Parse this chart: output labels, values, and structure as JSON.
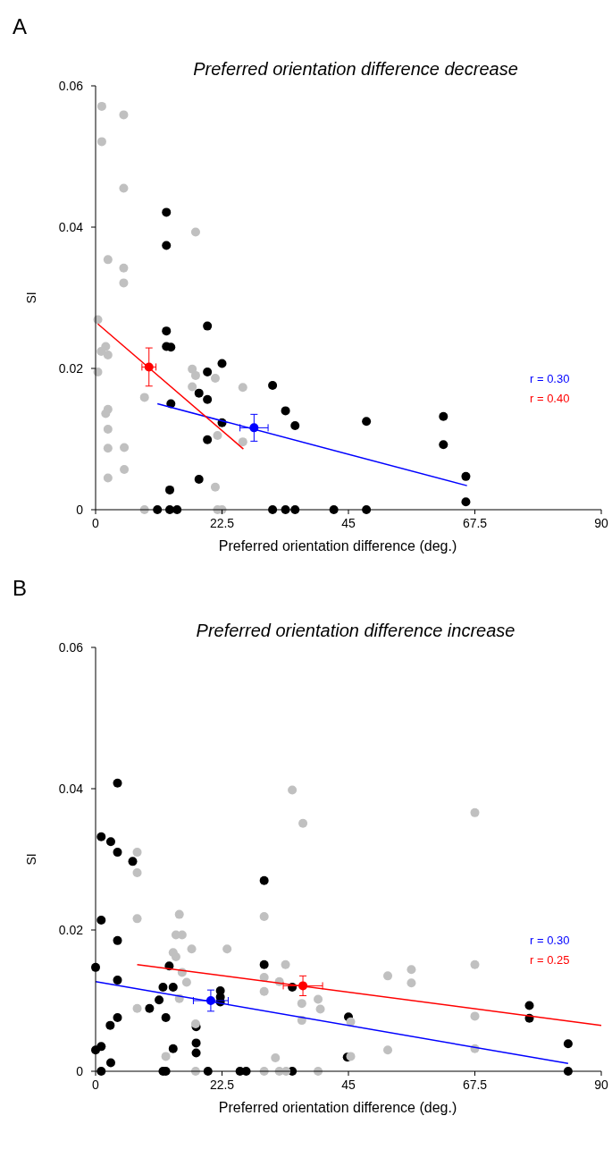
{
  "chart_data": [
    {
      "type": "scatter",
      "title": "Preferred orientation difference decrease",
      "xlabel": "Preferred orientation difference  (deg.)",
      "ylabel": "SI",
      "annotations": [
        "A"
      ],
      "xlim": [
        0,
        90
      ],
      "ylim": [
        0,
        0.06
      ],
      "xticks": [
        0,
        22.5,
        45,
        67.5,
        90
      ],
      "yticks": [
        0,
        0.02,
        0.04,
        0.06
      ],
      "marker": "circle",
      "series": [
        {
          "color": "#c0c0c0",
          "x": [
            1.1,
            5.0,
            1.1,
            5.0,
            2.2,
            5.0,
            5.0,
            17.8,
            0.4,
            1.8,
            1.0,
            2.2,
            0.4,
            17.2,
            17.8,
            21.3,
            17.2,
            26.2,
            8.7,
            2.2,
            1.8,
            2.2,
            2.2,
            5.1,
            21.7,
            26.2,
            5.1,
            2.2,
            21.3,
            8.7,
            21.7,
            22.5
          ],
          "values": [
            0.0571,
            0.0559,
            0.0521,
            0.0455,
            0.0354,
            0.0342,
            0.0321,
            0.0393,
            0.0269,
            0.0231,
            0.0224,
            0.0219,
            0.0195,
            0.0199,
            0.019,
            0.0186,
            0.0174,
            0.0173,
            0.0159,
            0.0142,
            0.0136,
            0.0114,
            0.0087,
            0.0088,
            0.0105,
            0.0096,
            0.0057,
            0.0045,
            0.0032,
            0,
            0,
            0
          ]
        },
        {
          "color": "#000000",
          "x": [
            12.6,
            12.6,
            12.6,
            12.6,
            13.4,
            19.9,
            22.5,
            19.9,
            18.4,
            19.9,
            13.4,
            22.5,
            19.9,
            18.4,
            13.2,
            11.0,
            13.2,
            14.5,
            31.5,
            33.8,
            35.5,
            48.2,
            61.9,
            61.9,
            65.9,
            65.9,
            31.5,
            33.8,
            35.5,
            42.4,
            48.2
          ],
          "values": [
            0.0421,
            0.0374,
            0.0253,
            0.0231,
            0.023,
            0.026,
            0.0207,
            0.0195,
            0.0165,
            0.0156,
            0.015,
            0.0123,
            0.0099,
            0.0043,
            0.0028,
            0,
            0,
            0,
            0.0176,
            0.014,
            0.0119,
            0.0125,
            0.0132,
            0.0092,
            0.0047,
            0.0011,
            0,
            0,
            0,
            0,
            0
          ]
        },
        {
          "type": "line",
          "name": "r = 0.30",
          "color": "#0000ff",
          "marker": "none",
          "x": [
            11.0,
            66.1
          ],
          "values": [
            0.015,
            0.0034
          ]
        },
        {
          "type": "line",
          "name": "r = 0.40",
          "color": "#ff0000",
          "marker": "none",
          "x": [
            0.4,
            26.3
          ],
          "values": [
            0.0263,
            0.0086
          ]
        },
        {
          "color": "#0000ff",
          "x": [
            28.2
          ],
          "values": [
            0.0116
          ],
          "errors": [
            0.0019
          ],
          "xerrors": [
            2.5
          ]
        },
        {
          "color": "#ff0000",
          "x": [
            9.5
          ],
          "values": [
            0.0202
          ],
          "errors": [
            0.0027
          ],
          "xerrors": [
            1.25
          ]
        }
      ]
    },
    {
      "type": "scatter",
      "title": "Preferred orientation difference increase",
      "xlabel": "Preferred orientation difference  (deg.)",
      "ylabel": "SI",
      "annotations": [
        "B"
      ],
      "xlim": [
        0,
        90
      ],
      "ylim": [
        0,
        0.06
      ],
      "xticks": [
        0,
        22.5,
        45,
        67.5,
        90
      ],
      "yticks": [
        0,
        0.02,
        0.04,
        0.06
      ],
      "marker": "circle",
      "series": [
        {
          "color": "#000000",
          "x": [
            3.9,
            1.0,
            2.7,
            3.9,
            6.6,
            1.0,
            3.9,
            0,
            13.1,
            3.9,
            12.0,
            13.8,
            11.3,
            9.6,
            3.9,
            12.5,
            2.6,
            22.2,
            22.2,
            22.2,
            17.9,
            17.9,
            17.9,
            13.8,
            0,
            1.0,
            2.7,
            1.0,
            12.0,
            12.5,
            20.0,
            25.7,
            26.8,
            30.0,
            30.0,
            35.0,
            45.0,
            44.8,
            77.2,
            77.2,
            84.1,
            84.1,
            35.0
          ],
          "values": [
            0.0408,
            0.0332,
            0.0325,
            0.031,
            0.0297,
            0.0214,
            0.0185,
            0.0147,
            0.0149,
            0.0129,
            0.0119,
            0.0119,
            0.0101,
            0.0089,
            0.0076,
            0.0076,
            0.0065,
            0.0114,
            0.0105,
            0.0098,
            0.0063,
            0.004,
            0.0026,
            0.0032,
            0.003,
            0.0035,
            0.0012,
            0,
            0,
            0,
            0,
            0,
            0,
            0.027,
            0.0151,
            0.0119,
            0.0077,
            0.002,
            0.0093,
            0.0075,
            0.0039,
            0,
            0
          ]
        },
        {
          "color": "#c0c0c0",
          "x": [
            7.4,
            7.4,
            7.4,
            14.9,
            14.3,
            15.4,
            17.1,
            23.4,
            13.8,
            14.3,
            15.4,
            16.2,
            14.9,
            7.4,
            17.8,
            12.5,
            17.8,
            35.0,
            36.9,
            67.5,
            30.0,
            33.8,
            30.0,
            32.7,
            30.0,
            52.0,
            56.2,
            56.2,
            67.5,
            36.7,
            39.6,
            40.0,
            36.7,
            45.4,
            52.0,
            67.5,
            67.5,
            45.4,
            32.0,
            30.0,
            32.7,
            33.9,
            39.6
          ],
          "values": [
            0.031,
            0.0281,
            0.0216,
            0.0222,
            0.0193,
            0.0193,
            0.0173,
            0.0173,
            0.0168,
            0.0162,
            0.014,
            0.0126,
            0.0103,
            0.0089,
            0.0067,
            0.0021,
            0,
            0.0398,
            0.0351,
            0.0366,
            0.0219,
            0.0151,
            0.0133,
            0.0127,
            0.0113,
            0.0135,
            0.0144,
            0.0125,
            0.0151,
            0.0096,
            0.0102,
            0.0088,
            0.0072,
            0.007,
            0.003,
            0.0078,
            0.0032,
            0.0021,
            0.0019,
            0,
            0,
            0,
            0
          ]
        },
        {
          "type": "line",
          "name": "r = 0.30",
          "color": "#0000ff",
          "marker": "none",
          "x": [
            0,
            84.1
          ],
          "values": [
            0.0127,
            0.0011
          ]
        },
        {
          "type": "line",
          "name": "r = 0.25",
          "color": "#ff0000",
          "marker": "none",
          "x": [
            7.4,
            90
          ],
          "values": [
            0.0151,
            0.0065
          ]
        },
        {
          "color": "#0000ff",
          "x": [
            20.5
          ],
          "values": [
            0.01
          ],
          "errors": [
            0.0015
          ],
          "xerrors": [
            3.1
          ]
        },
        {
          "color": "#ff0000",
          "x": [
            36.9
          ],
          "values": [
            0.0121
          ],
          "errors": [
            0.0014
          ],
          "xerrors": [
            3.5
          ]
        }
      ]
    }
  ]
}
